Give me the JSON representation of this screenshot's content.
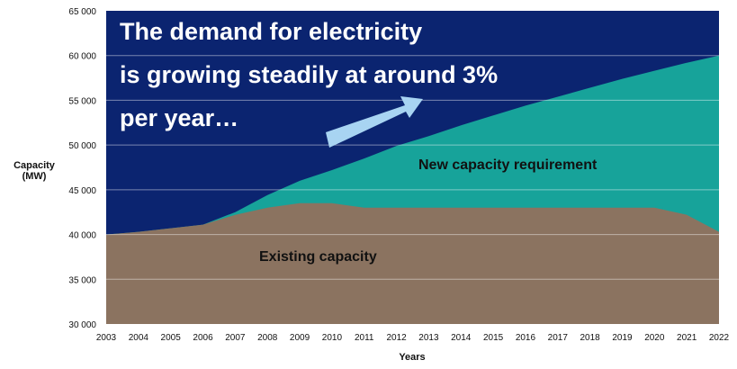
{
  "chart_data": {
    "type": "area",
    "xlabel": "Years",
    "ylabel": [
      "Capacity",
      "(MW)"
    ],
    "x": [
      2003,
      2004,
      2005,
      2006,
      2007,
      2008,
      2009,
      2010,
      2011,
      2012,
      2013,
      2014,
      2015,
      2016,
      2017,
      2018,
      2019,
      2020,
      2021,
      2022
    ],
    "x_tick_labels": [
      "2003",
      "2004",
      "2005",
      "2006",
      "2007",
      "2008",
      "2009",
      "2010",
      "2011",
      "2012",
      "2013",
      "2014",
      "2015",
      "2016",
      "2017",
      "2018",
      "2019",
      "2020",
      "2021",
      "2022"
    ],
    "ylim": [
      30000,
      65000
    ],
    "y_ticks": [
      30000,
      35000,
      40000,
      45000,
      50000,
      55000,
      60000,
      65000
    ],
    "y_tick_labels": [
      "30 000",
      "35 000",
      "40 000",
      "45 000",
      "50 000",
      "55 000",
      "60 000",
      "65 000"
    ],
    "grid": true,
    "series": [
      {
        "key": "demand",
        "color": "#17a39a",
        "values": [
          40000,
          40300,
          40700,
          41100,
          42500,
          44400,
          46000,
          47200,
          48500,
          49900,
          51000,
          52200,
          53300,
          54400,
          55400,
          56400,
          57400,
          58300,
          59200,
          60000
        ]
      },
      {
        "key": "existing",
        "color": "#8b7360",
        "values": [
          40000,
          40300,
          40700,
          41100,
          42200,
          43000,
          43500,
          43500,
          43000,
          43000,
          43000,
          43000,
          43000,
          43000,
          43000,
          43000,
          43000,
          43000,
          42200,
          40300
        ]
      }
    ],
    "background_color": "#0b2470",
    "annotations": {
      "new_capacity": "New capacity requirement",
      "existing_capacity": "Existing capacity",
      "headline": [
        "The demand for electricity",
        "is growing steadily at around 3%",
        "per year…"
      ]
    },
    "arrow_color": "#a8d4f2"
  }
}
